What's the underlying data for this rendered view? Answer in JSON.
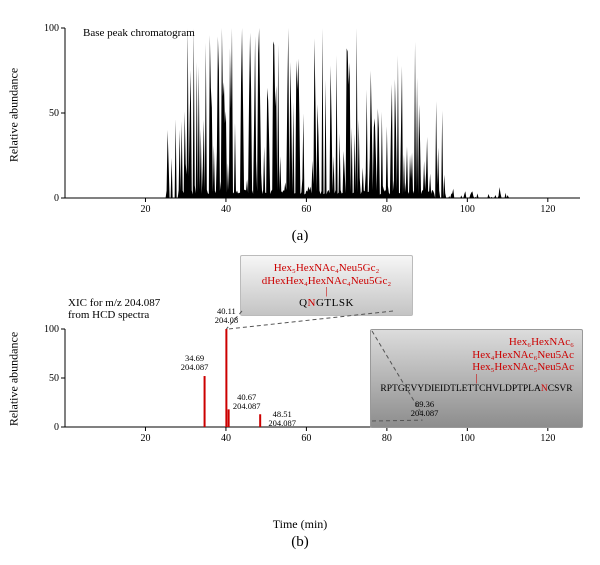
{
  "panel_a": {
    "subplot_label": "(a)",
    "title": "Base peak chromatogram",
    "ylabel": "Relative abundance",
    "type": "area",
    "color": "#000000",
    "background_color": "#ffffff",
    "xlim": [
      0,
      128
    ],
    "ylim": [
      0,
      100
    ],
    "xtick_step": 20,
    "ytick_step": 50,
    "label_fontsize": 12,
    "tick_fontsize": 10
  },
  "panel_b": {
    "subplot_label": "(b)",
    "ylabel": "Relative abundance",
    "xlabel": "Time (min)",
    "xic_source": "XIC for m/z 204.087\nfrom HCD spectra",
    "type": "sparse-peaks",
    "peak_color": "#cc0000",
    "background_color": "#ffffff",
    "xlim": [
      0,
      128
    ],
    "ylim": [
      0,
      100
    ],
    "xtick_step": 20,
    "ytick_step": 50,
    "label_fontsize": 12,
    "tick_fontsize": 10,
    "peaks": [
      {
        "rt": 34.69,
        "mz": "204.087",
        "intensity": 52,
        "label_rt": "34.69",
        "label_mz": "204.087"
      },
      {
        "rt": 40.11,
        "mz": "204.08",
        "intensity": 100,
        "label_rt": "40.11",
        "label_mz": "204.08"
      },
      {
        "rt": 40.67,
        "mz": "204.087",
        "intensity": 18,
        "label_rt": "40.67",
        "label_mz": "204.087"
      },
      {
        "rt": 48.51,
        "mz": "204.087",
        "intensity": 13,
        "label_rt": "48.51",
        "label_mz": "204.087"
      },
      {
        "rt": 89.36,
        "mz": "204.087",
        "intensity": 7,
        "label_rt": "89.36",
        "label_mz": "204.087"
      }
    ],
    "annotation_top": {
      "glycans": [
        "Hex₅HexNAc₄Neu5Gc₂",
        "dHexHex₄HexNAc₄Neu5Gc₂"
      ],
      "peptide_pre": "Q",
      "peptide_n": "N",
      "peptide_post": "GTLSK",
      "box_gradient": [
        "#f6f6f6",
        "#c4c4c4"
      ]
    },
    "annotation_right": {
      "glycans": [
        "Hex₆HexNAc₆",
        "Hex₄HexNAc₆Neu5Ac",
        "Hex₅HexNAc₅Neu5Ac"
      ],
      "peptide_pre": "RPTGEVYDIEIDTLETTCHVLDPTPLA",
      "peptide_n": "N",
      "peptide_post": "CSVR",
      "box_gradient": [
        "#dcdcdc",
        "#8d8d8d"
      ]
    }
  }
}
